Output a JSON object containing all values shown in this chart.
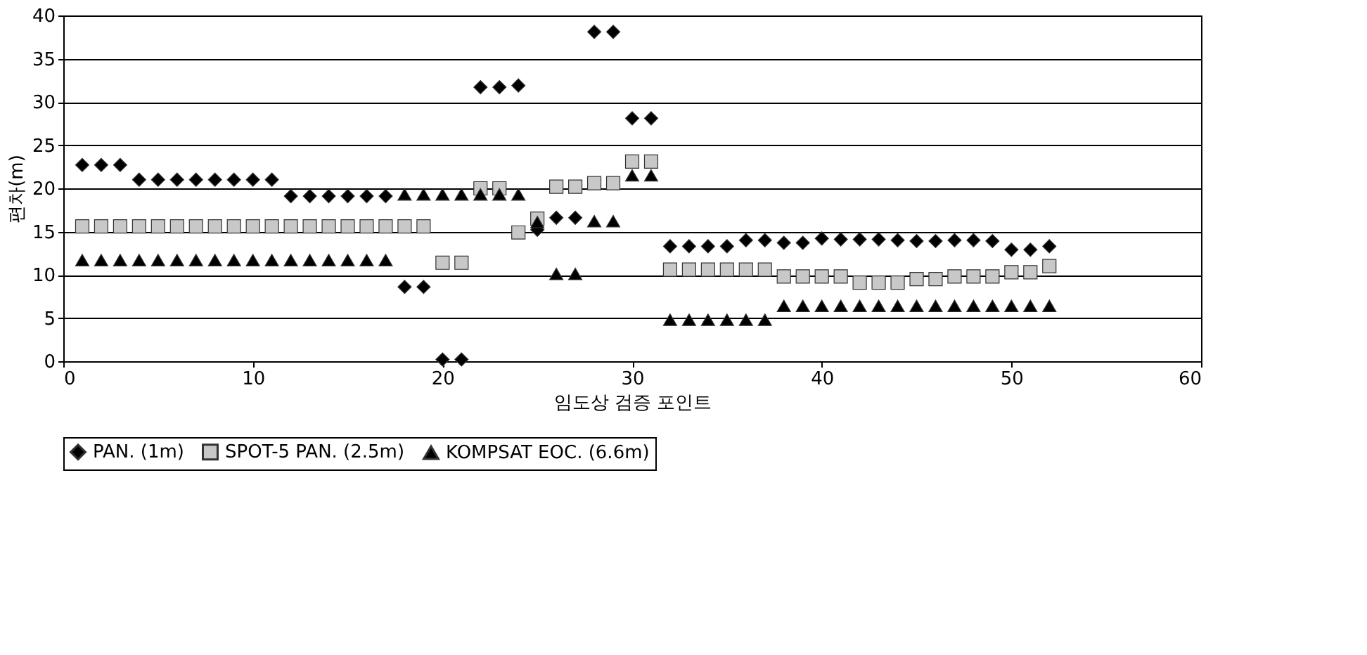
{
  "chart_data": {
    "type": "scatter",
    "xlabel": "임도상 검증 포인트",
    "ylabel": "편차(m)",
    "x": [
      1,
      2,
      3,
      4,
      5,
      6,
      7,
      8,
      9,
      10,
      11,
      12,
      13,
      14,
      15,
      16,
      17,
      18,
      19,
      20,
      21,
      22,
      23,
      24,
      25,
      26,
      27,
      28,
      29,
      30,
      31,
      32,
      33,
      34,
      35,
      36,
      37,
      38,
      39,
      40,
      41,
      42,
      43,
      44,
      45,
      46,
      47,
      48,
      49,
      50,
      51,
      52
    ],
    "series": [
      {
        "name": "PAN. (1m)",
        "color": "#000000",
        "marker": "diamond",
        "values": [
          22.7,
          22.7,
          22.7,
          21.0,
          21.0,
          21.0,
          21.0,
          21.0,
          21.0,
          21.0,
          21.0,
          19.1,
          19.1,
          19.1,
          19.1,
          19.1,
          19.1,
          8.6,
          8.6,
          0.2,
          0.2,
          31.7,
          31.7,
          31.9,
          15.2,
          16.6,
          16.6,
          38.1,
          38.1,
          28.1,
          28.1,
          13.3,
          13.3,
          13.3,
          13.3,
          14.0,
          14.0,
          13.7,
          13.7,
          14.2,
          14.1,
          14.1,
          14.1,
          14.0,
          13.9,
          13.9,
          14.0,
          14.0,
          13.9,
          12.9,
          12.9,
          13.3
        ]
      },
      {
        "name": "SPOT-5 PAN. (2.5m)",
        "color": "#c8c8c8",
        "marker": "square",
        "values": [
          15.6,
          15.6,
          15.6,
          15.6,
          15.6,
          15.6,
          15.6,
          15.6,
          15.6,
          15.6,
          15.6,
          15.6,
          15.6,
          15.6,
          15.6,
          15.6,
          15.6,
          15.6,
          15.6,
          11.4,
          11.4,
          20.0,
          20.0,
          14.9,
          16.5,
          20.2,
          20.2,
          20.6,
          20.6,
          23.1,
          23.1,
          10.6,
          10.6,
          10.6,
          10.6,
          10.6,
          10.6,
          9.8,
          9.8,
          9.8,
          9.8,
          9.1,
          9.1,
          9.1,
          9.5,
          9.5,
          9.8,
          9.8,
          9.8,
          10.3,
          10.3,
          11.0
        ]
      },
      {
        "name": "KOMPSAT EOC. (6.6m)",
        "color": "#000000",
        "marker": "triangle",
        "values": [
          11.7,
          11.7,
          11.7,
          11.7,
          11.7,
          11.7,
          11.7,
          11.7,
          11.7,
          11.7,
          11.7,
          11.7,
          11.7,
          11.7,
          11.7,
          11.7,
          11.7,
          19.3,
          19.3,
          19.3,
          19.3,
          19.3,
          19.3,
          19.3,
          16.1,
          10.1,
          10.1,
          16.2,
          16.2,
          21.5,
          21.5,
          4.8,
          4.8,
          4.8,
          4.8,
          4.8,
          4.8,
          6.4,
          6.4,
          6.4,
          6.4,
          6.4,
          6.4,
          6.4,
          6.4,
          6.4,
          6.4,
          6.4,
          6.4,
          6.4,
          6.4,
          6.4
        ]
      }
    ],
    "xlim": [
      0,
      60
    ],
    "xticks": [
      0,
      10,
      20,
      30,
      40,
      50,
      60
    ],
    "ylim": [
      0,
      40
    ],
    "yticks": [
      0,
      5,
      10,
      15,
      20,
      25,
      30,
      35,
      40
    ],
    "grid": "y",
    "legend": "bottom"
  }
}
